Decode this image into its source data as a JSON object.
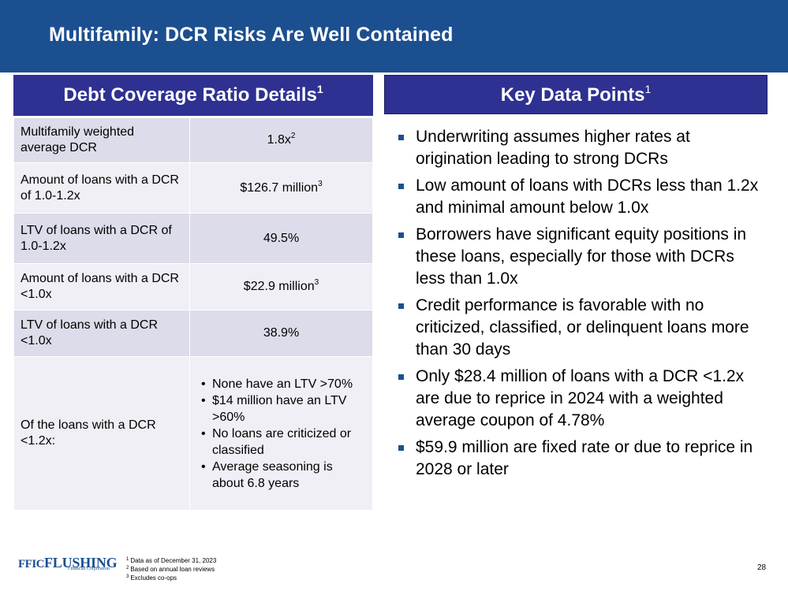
{
  "slide": {
    "title": "Multifamily: DCR Risks Are Well Contained",
    "page_number": "28"
  },
  "left_panel": {
    "header": "Debt Coverage Ratio Details",
    "header_sup": "1",
    "rows": [
      {
        "label": "Multifamily weighted average DCR",
        "value": "1.8x",
        "sup": "2"
      },
      {
        "label": "Amount of loans with a DCR of 1.0-1.2x",
        "value": "$126.7 million",
        "sup": "3"
      },
      {
        "label": "LTV of loans with a DCR of 1.0-1.2x",
        "value": "49.5%",
        "sup": ""
      },
      {
        "label": "Amount of loans with a DCR <1.0x",
        "value": "$22.9 million",
        "sup": "3"
      },
      {
        "label": "LTV of loans with a DCR <1.0x",
        "value": "38.9%",
        "sup": ""
      }
    ],
    "last_row": {
      "label": "Of the loans with a DCR <1.2x:",
      "bullets": [
        "None have an LTV >70%",
        "$14 million have an LTV >60%",
        "No loans are criticized or classified",
        "Average seasoning is about 6.8 years"
      ]
    }
  },
  "right_panel": {
    "header": "Key Data Points",
    "header_sup": "1",
    "points": [
      "Underwriting assumes higher rates at origination leading to strong DCRs",
      "Low amount of loans with DCRs less than 1.2x and minimal amount below 1.0x",
      "Borrowers have significant equity positions in these loans, especially for those with DCRs less than 1.0x",
      "Credit performance is favorable with no criticized, classified, or delinquent loans more than 30 days",
      "Only $28.4 million of loans with a DCR <1.2x are due to reprice in 2024 with a weighted average coupon of 4.78%",
      "$59.9 million are fixed rate or due to reprice in 2028 or later"
    ]
  },
  "footer": {
    "logo_mark": "FFIC",
    "logo_name": "FLUSHING",
    "logo_sub": "Financial Corporation",
    "footnotes": [
      {
        "num": "1",
        "text": "Data as of December 31, 2023"
      },
      {
        "num": "2",
        "text": "Based on annual loan reviews"
      },
      {
        "num": "3",
        "text": "Excludes co-ops"
      }
    ]
  },
  "colors": {
    "title_bar": "#1c4f8f",
    "panel_header": "#2e3192",
    "row_dark": "#dcdcea",
    "row_light": "#efeff5"
  }
}
